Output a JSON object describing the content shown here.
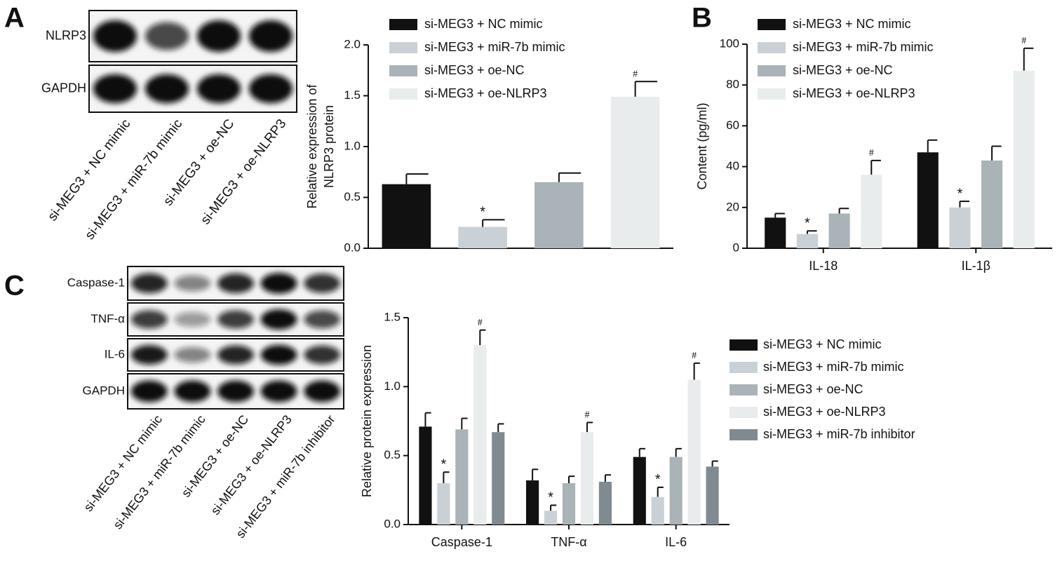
{
  "panels": [
    "A",
    "B",
    "C"
  ],
  "blots": [
    {
      "rows": [
        "NLRP3",
        "GAPDH"
      ],
      "lanes": [
        "si-MEG3 + NC mimic",
        "si-MEG3 + miR-7b mimic",
        "si-MEG3 + oe-NC",
        "si-MEG3 + oe-NLRP3"
      ]
    },
    {
      "rows": [
        "Caspase-1",
        "TNF-α",
        "IL-6",
        "GAPDH"
      ],
      "lanes": [
        "si-MEG3 + NC mimic",
        "si-MEG3 + miR-7b mimic",
        "si-MEG3 + oe-NC",
        "si-MEG3 + oe-NLRP3",
        "si-MEG3 + miR-7b inhibitor"
      ]
    }
  ],
  "chart_data": [
    {
      "type": "bar",
      "ylabel": [
        "Relative expression of",
        "NLRP3 protein"
      ],
      "categories": [
        "si-MEG3 + NC mimic",
        "si-MEG3 + miR-7b mimic",
        "si-MEG3 + oe-NC",
        "si-MEG3 + oe-NLRP3"
      ],
      "colors": [
        "#111111",
        "#c9d1d7",
        "#a9b3b8",
        "#e9eced"
      ],
      "values": [
        0.63,
        0.21,
        0.65,
        1.49
      ],
      "errors": [
        0.1,
        0.07,
        0.09,
        0.15
      ],
      "annotations": [
        null,
        "*",
        null,
        "#"
      ],
      "ylim": [
        0,
        2
      ],
      "yticks": [
        {
          "value": 0,
          "label": "0.0"
        },
        0.5,
        {
          "value": 1,
          "label": "1.0"
        },
        1.5,
        {
          "value": 2,
          "label": "2.0"
        }
      ]
    },
    {
      "type": "grouped_bar",
      "ylabel": [
        "Content (pg/ml)"
      ],
      "categories": [
        "IL-18",
        "IL-1β"
      ],
      "series": [
        {
          "name": "si-MEG3 + NC mimic",
          "color": "#111111",
          "values": [
            15,
            47
          ],
          "errors": [
            2,
            6
          ],
          "annotations": [
            null,
            null
          ]
        },
        {
          "name": "si-MEG3 + miR-7b mimic",
          "color": "#c9d1d7",
          "values": [
            7,
            20
          ],
          "errors": [
            1.5,
            3
          ],
          "annotations": [
            "*",
            "*"
          ]
        },
        {
          "name": "si-MEG3 + oe-NC",
          "color": "#a9b3b8",
          "values": [
            17,
            43
          ],
          "errors": [
            2.5,
            7
          ],
          "annotations": [
            null,
            null
          ]
        },
        {
          "name": "si-MEG3 + oe-NLRP3",
          "color": "#e9eced",
          "values": [
            36,
            87
          ],
          "errors": [
            7,
            11
          ],
          "annotations": [
            "#",
            "#"
          ]
        }
      ],
      "ylim": [
        0,
        100
      ],
      "yticks": [
        0,
        20,
        40,
        60,
        80,
        100
      ]
    },
    {
      "type": "grouped_bar",
      "ylabel": [
        "Relative protein expression"
      ],
      "categories": [
        "Caspase-1",
        "TNF-α",
        "IL-6"
      ],
      "series": [
        {
          "name": "si-MEG3 + NC mimic",
          "color": "#111111",
          "values": [
            0.71,
            0.32,
            0.49
          ],
          "errors": [
            0.1,
            0.08,
            0.06
          ],
          "annotations": [
            null,
            null,
            null
          ]
        },
        {
          "name": "si-MEG3 + miR-7b mimic",
          "color": "#c9d1d7",
          "values": [
            0.3,
            0.1,
            0.2
          ],
          "errors": [
            0.08,
            0.04,
            0.07
          ],
          "annotations": [
            "*",
            "*",
            "*"
          ]
        },
        {
          "name": "si-MEG3 + oe-NC",
          "color": "#a9b3b8",
          "values": [
            0.69,
            0.3,
            0.49
          ],
          "errors": [
            0.08,
            0.05,
            0.06
          ],
          "annotations": [
            null,
            null,
            null
          ]
        },
        {
          "name": "si-MEG3 + oe-NLRP3",
          "color": "#e9eced",
          "values": [
            1.3,
            0.67,
            1.05
          ],
          "errors": [
            0.11,
            0.07,
            0.12
          ],
          "annotations": [
            "#",
            "#",
            "#"
          ]
        },
        {
          "name": "si-MEG3 + miR-7b inhibitor",
          "color": "#808b91",
          "values": [
            0.67,
            0.31,
            0.42
          ],
          "errors": [
            0.06,
            0.05,
            0.04
          ],
          "annotations": [
            null,
            null,
            null
          ]
        }
      ],
      "ylim": [
        0,
        1.5
      ],
      "yticks": [
        {
          "value": 0,
          "label": "0.0"
        },
        0.5,
        {
          "value": 1,
          "label": "1.0"
        },
        1.5
      ]
    }
  ]
}
